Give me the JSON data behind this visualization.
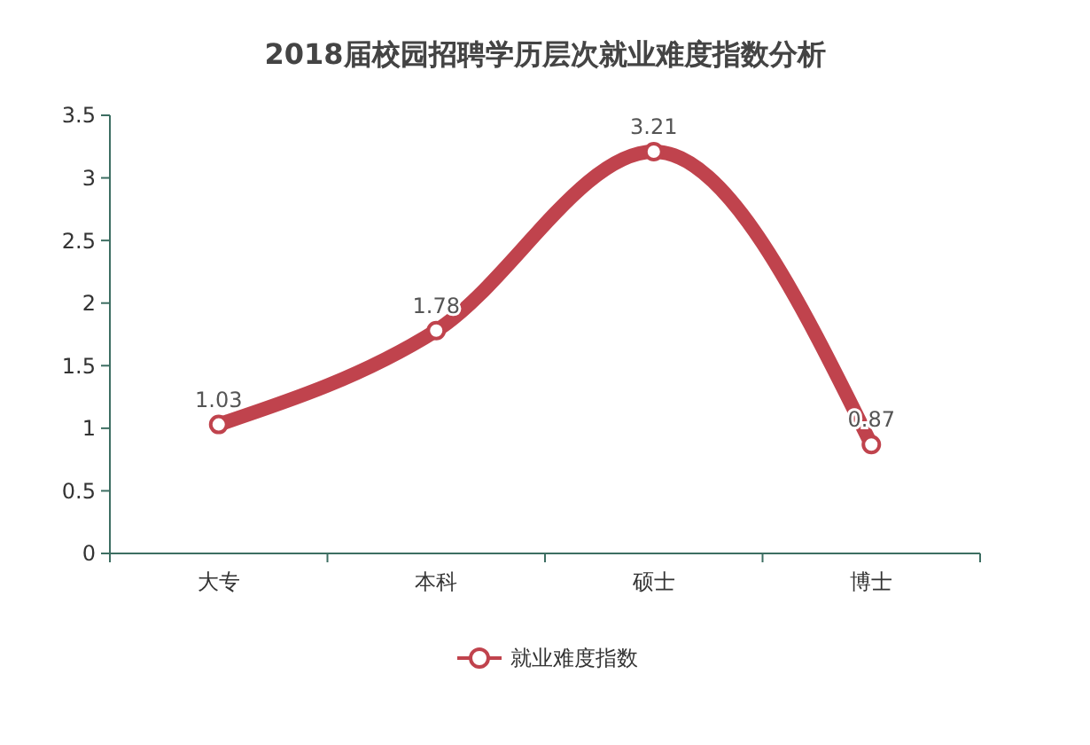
{
  "chart_data": {
    "type": "line",
    "title": "2018届校园招聘学历层次就业难度指数分析",
    "categories": [
      "大专",
      "本科",
      "硕士",
      "博士"
    ],
    "series": [
      {
        "name": "就业难度指数",
        "color": "#c0434d",
        "values": [
          1.03,
          1.78,
          3.21,
          0.87
        ]
      }
    ],
    "ylim": [
      0,
      3.5
    ],
    "yticks": [
      0,
      0.5,
      1,
      1.5,
      2,
      2.5,
      3,
      3.5
    ],
    "data_labels": true,
    "legend": "bottom",
    "marker": "circle",
    "line_style": "solid"
  }
}
